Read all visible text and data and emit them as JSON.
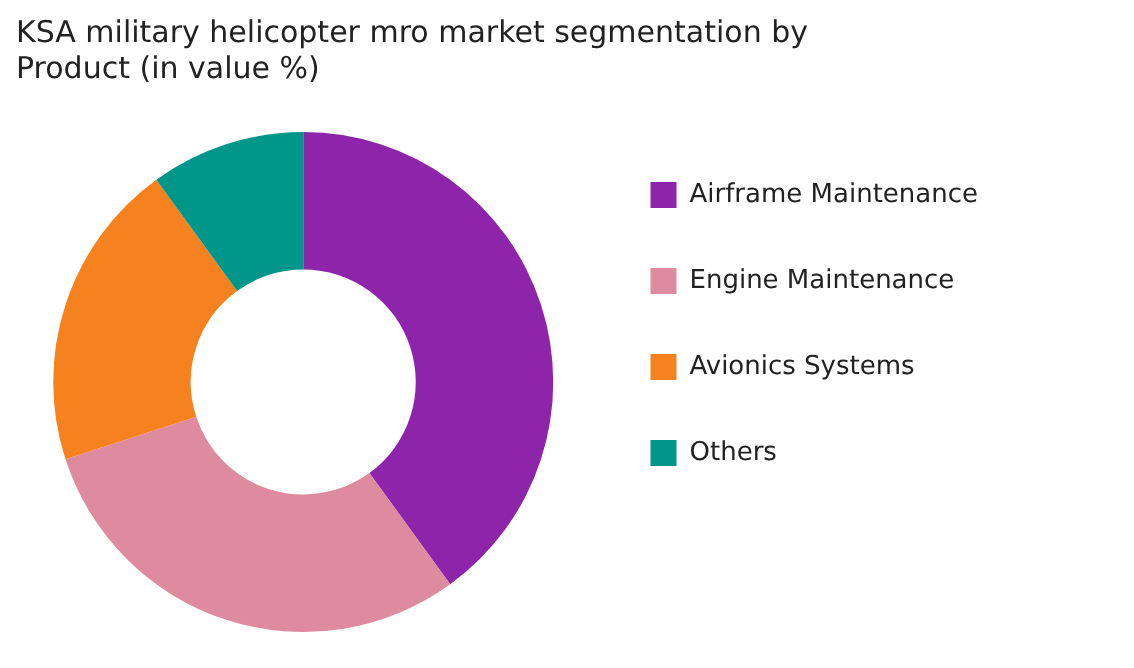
{
  "chart_data": {
    "type": "donut",
    "title": "KSA military helicopter mro market segmentation by Product (in value %)",
    "categories": [
      "Airframe Maintenance",
      "Engine Maintenance",
      "Avionics Systems",
      "Others"
    ],
    "values": [
      40,
      30,
      20,
      10
    ],
    "colors": [
      "#8e24aa",
      "#de8ba0",
      "#f5821f",
      "#00968a"
    ],
    "legend": "right"
  }
}
